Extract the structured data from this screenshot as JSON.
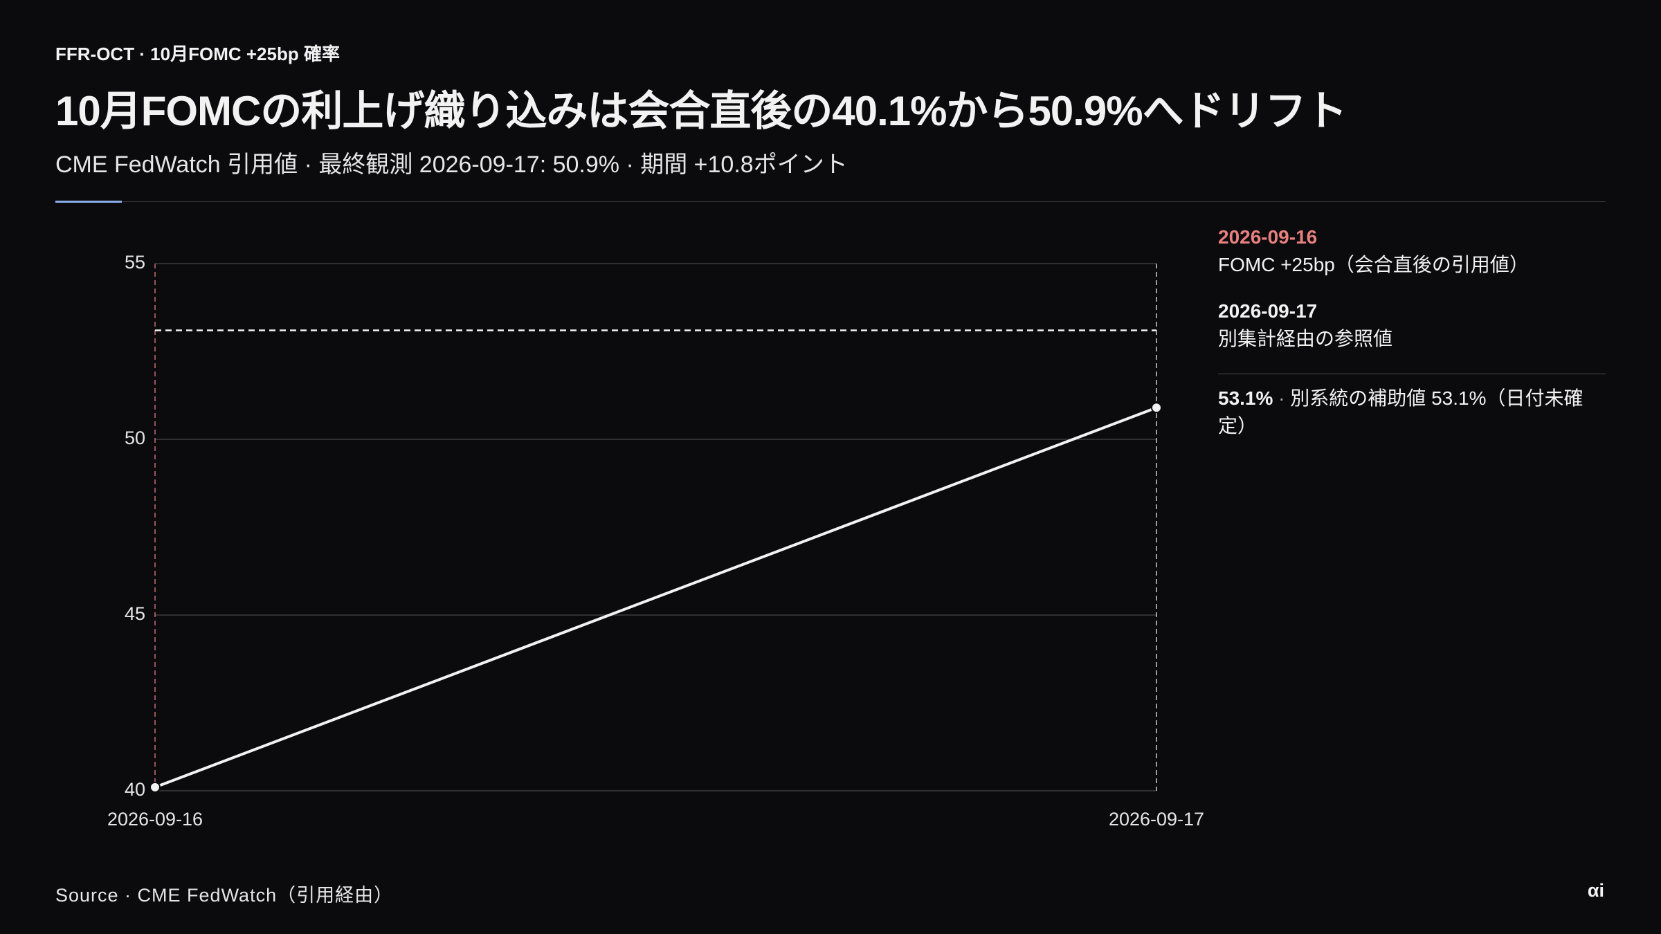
{
  "header": {
    "kicker": "FFR-OCT · 10月FOMC +25bp 確率",
    "title": "10月FOMCの利上げ織り込みは会合直後の40.1%から50.9%へドリフト",
    "subtitle": "CME FedWatch 引用値 · 最終観測 2026-09-17: 50.9% · 期間 +10.8ポイント"
  },
  "chart_data": {
    "type": "line",
    "categories": [
      "2026-09-16",
      "2026-09-17"
    ],
    "series": [
      {
        "name": "FedWatch",
        "color": "#f2f2f2",
        "values": [
          40.1,
          50.9
        ]
      }
    ],
    "ylim": [
      40,
      55
    ],
    "yticks": [
      40,
      45,
      50,
      55
    ],
    "grid": true,
    "annotations": [
      {
        "date": "2026-09-16",
        "text": "FOMC +25bp（会合直後の引用値）",
        "color": "#e88080"
      },
      {
        "date": "2026-09-17",
        "text": "別集計経由の参照値",
        "color": "#f2f2f2"
      }
    ],
    "reference": {
      "value": 53.1,
      "label": "53.1%",
      "text": "別系統の補助値 53.1%（日付未確定）",
      "color": "#f2f2f2"
    }
  },
  "footer": {
    "source": "Source · CME FedWatch（引用経由）",
    "brand": "αi"
  }
}
